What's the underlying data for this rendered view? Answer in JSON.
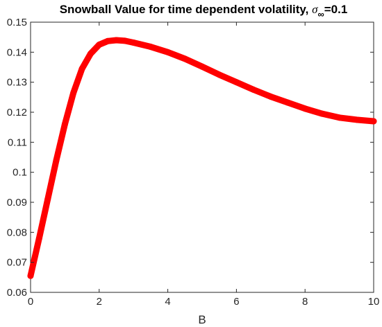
{
  "chart_data": {
    "type": "line",
    "title": "Snowball Value for time dependent volatility, ",
    "title_symbol": "σ",
    "title_subscript": "∞",
    "title_suffix": "=0.1",
    "xlabel": "B",
    "ylabel": "",
    "xlim": [
      0,
      10
    ],
    "ylim": [
      0.06,
      0.15
    ],
    "xticks": [
      "0",
      "2",
      "4",
      "6",
      "8",
      "10"
    ],
    "yticks": [
      "0.06",
      "0.07",
      "0.08",
      "0.09",
      "0.1",
      "0.11",
      "0.12",
      "0.13",
      "0.14",
      "0.15"
    ],
    "grid": false,
    "series": [
      {
        "color": "#ff0000",
        "x": [
          0,
          0.25,
          0.5,
          0.75,
          1.0,
          1.25,
          1.5,
          1.75,
          2.0,
          2.25,
          2.5,
          2.75,
          3.0,
          3.5,
          4.0,
          4.5,
          5.0,
          5.5,
          6.0,
          6.5,
          7.0,
          7.5,
          8.0,
          8.5,
          9.0,
          9.5,
          10.0
        ],
        "y": [
          0.0655,
          0.078,
          0.091,
          0.104,
          0.116,
          0.1265,
          0.1345,
          0.1395,
          0.1425,
          0.1437,
          0.144,
          0.1438,
          0.1432,
          0.1418,
          0.14,
          0.1378,
          0.1352,
          0.1325,
          0.13,
          0.1275,
          0.1252,
          0.1232,
          0.1212,
          0.1195,
          0.1182,
          0.1175,
          0.117
        ]
      }
    ]
  }
}
